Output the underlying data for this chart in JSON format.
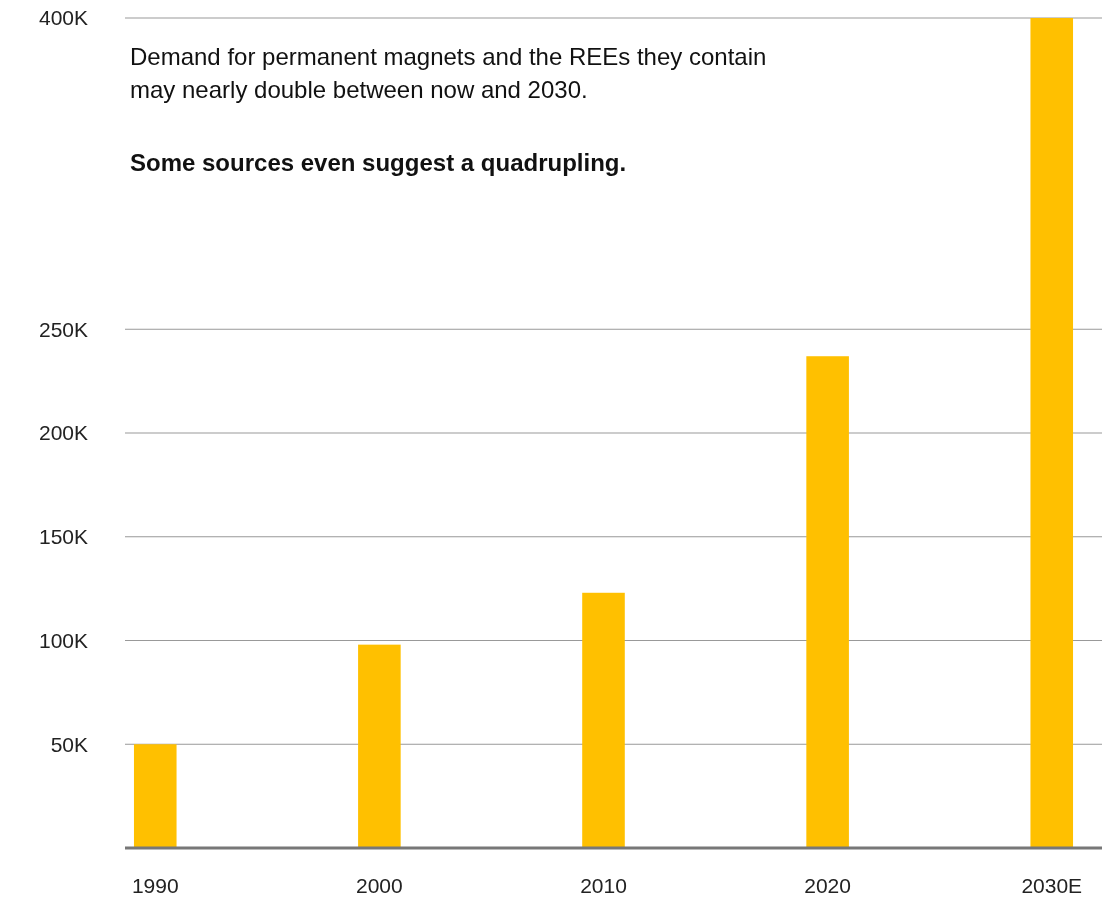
{
  "chart_data": {
    "type": "bar",
    "categories": [
      "1990",
      "2000",
      "2010",
      "2020",
      "2030E"
    ],
    "values": [
      50000,
      98000,
      123000,
      237000,
      400000
    ],
    "color": "#ffc000",
    "ylim": [
      0,
      400000
    ],
    "yticks": [
      {
        "value": 50000,
        "label": "50K"
      },
      {
        "value": 100000,
        "label": "100K"
      },
      {
        "value": 150000,
        "label": "150K"
      },
      {
        "value": 200000,
        "label": "200K"
      },
      {
        "value": 250000,
        "label": "250K"
      },
      {
        "value": 400000,
        "label": "400K"
      }
    ],
    "grid": "y",
    "annotations": [
      "Demand for permanent magnets and the REEs they contain may nearly double between now and 2030.",
      "Some sources even suggest a quadrupling."
    ]
  }
}
